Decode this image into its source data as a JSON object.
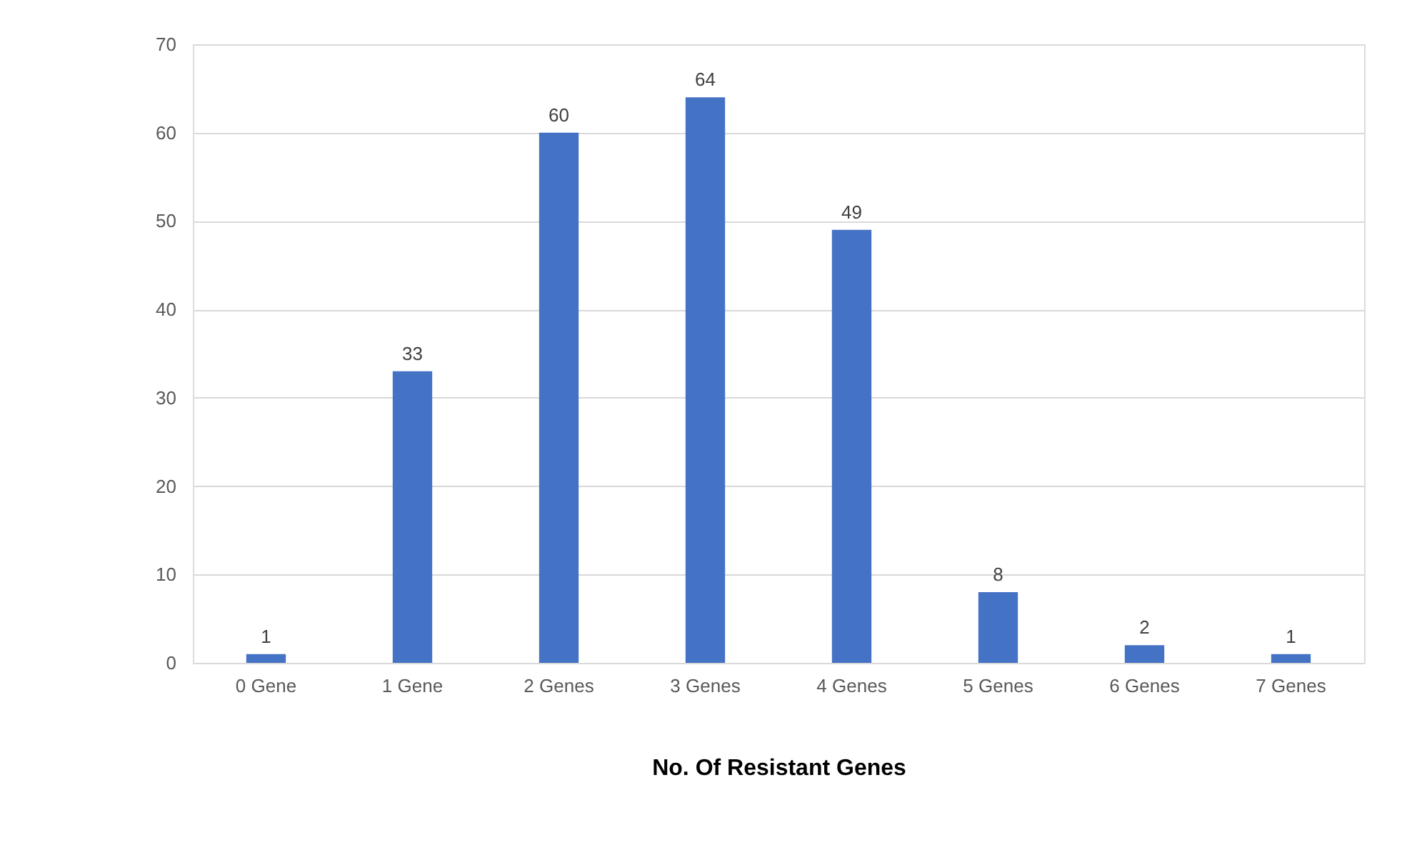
{
  "chart_data": {
    "type": "bar",
    "xlabel": "No. Of Resistant Genes",
    "categories": [
      "0 Gene",
      "1 Gene",
      "2 Genes",
      "3 Genes",
      "4 Genes",
      "5 Genes",
      "6 Genes",
      "7 Genes"
    ],
    "values": [
      1,
      33,
      60,
      64,
      49,
      8,
      2,
      1
    ],
    "color": "#4472c4",
    "ylim": [
      0,
      70
    ],
    "yticks": [
      0,
      10,
      20,
      30,
      40,
      50,
      60,
      70
    ],
    "grid": "y",
    "data_labels": true
  }
}
